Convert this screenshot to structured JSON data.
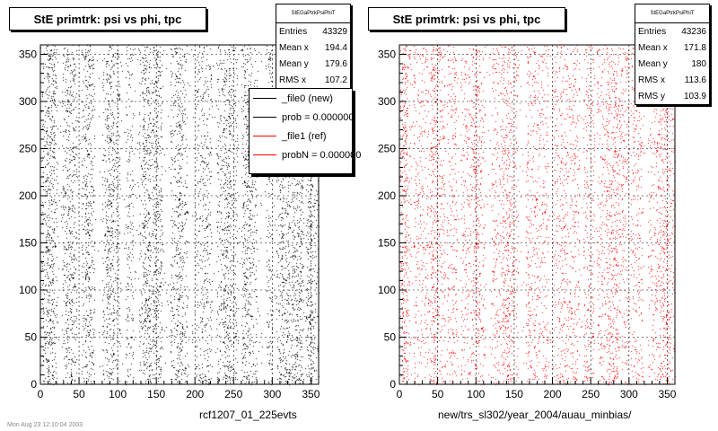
{
  "colors": {
    "left_series": "#000000",
    "right_series": "#ff0000",
    "background": "#ffffff"
  },
  "panels": [
    {
      "title": "StE primtrk: psi vs phi, tpc",
      "caption": "rcf1207_01_225evts",
      "stats": {
        "header": "StEGaPtrkPsiPhiT",
        "rows": [
          {
            "label": "Entries",
            "value": "43329"
          },
          {
            "label": "Mean x",
            "value": "194.4"
          },
          {
            "label": "Mean y",
            "value": "179.6"
          },
          {
            "label": "RMS x",
            "value": "107.2"
          }
        ]
      },
      "legend": [
        {
          "label": "_file0 (new)",
          "color": "#000000"
        },
        {
          "label": "prob = 0.000000",
          "color": "#000000"
        },
        {
          "label": "_file1 (ref)",
          "color": "#ff0000"
        },
        {
          "label": "probN = 0.000000",
          "color": "#ff0000"
        }
      ]
    },
    {
      "title": "StE primtrk: psi vs phi, tpc",
      "caption": "new/trs_sl302/year_2004/auau_minbias/",
      "stats": {
        "header": "StEGaPtrkPsiPhiT",
        "rows": [
          {
            "label": "Entries",
            "value": "43236"
          },
          {
            "label": "Mean x",
            "value": "171.8"
          },
          {
            "label": "Mean y",
            "value": "180"
          },
          {
            "label": "RMS x",
            "value": "113.6"
          },
          {
            "label": "RMS y",
            "value": "103.9"
          }
        ]
      }
    }
  ],
  "footer_stamp": "Mon Aug 23 12:10:04 2003",
  "chart_data": [
    {
      "type": "scatter",
      "title": "StE primtrk: psi vs phi, tpc",
      "xlabel": "rcf1207_01_225evts",
      "ylabel": "",
      "xlim": [
        0,
        360
      ],
      "ylim": [
        0,
        360
      ],
      "xticks": [
        0,
        50,
        100,
        150,
        200,
        250,
        300,
        350
      ],
      "yticks": [
        0,
        50,
        100,
        150,
        200,
        250,
        300,
        350
      ],
      "series": [
        {
          "name": "_file0 (new)",
          "color": "#000000",
          "entries": 43329,
          "dense_phi_bands": [
            [
              8,
              18
            ],
            [
              32,
              42
            ],
            [
              58,
              66
            ],
            [
              85,
              95
            ],
            [
              132,
              142
            ],
            [
              146,
              156
            ],
            [
              176,
              184
            ],
            [
              236,
              246
            ],
            [
              262,
              272
            ],
            [
              310,
              322
            ],
            [
              325,
              338
            ],
            [
              345,
              352
            ]
          ],
          "gap_phi_bands": [
            [
              0,
              2
            ],
            [
              22,
              28
            ],
            [
              47,
              53
            ],
            [
              70,
              80
            ],
            [
              103,
              110
            ],
            [
              120,
              127
            ],
            [
              158,
              168
            ],
            [
              190,
              200
            ],
            [
              222,
              228
            ],
            [
              255,
              260
            ],
            [
              280,
              292
            ],
            [
              300,
              305
            ],
            [
              340,
              343
            ]
          ]
        }
      ]
    },
    {
      "type": "scatter",
      "title": "StE primtrk: psi vs phi, tpc",
      "xlabel": "new/trs_sl302/year_2004/auau_minbias/",
      "ylabel": "",
      "xlim": [
        0,
        360
      ],
      "ylim": [
        0,
        360
      ],
      "xticks": [
        0,
        50,
        100,
        150,
        200,
        250,
        300,
        350
      ],
      "yticks": [
        0,
        50,
        100,
        150,
        200,
        250,
        300,
        350
      ],
      "series": [
        {
          "name": "_file1 (ref)",
          "color": "#ff0000",
          "entries": 43236,
          "dense_phi_bands": [
            [
              3,
              10
            ],
            [
              40,
              50
            ],
            [
              95,
              105
            ],
            [
              135,
              145
            ],
            [
              270,
              285
            ],
            [
              340,
              352
            ]
          ],
          "gap_phi_bands": [
            [
              15,
              18
            ],
            [
              60,
              62
            ],
            [
              75,
              80
            ],
            [
              112,
              120
            ],
            [
              155,
              165
            ],
            [
              195,
              200
            ],
            [
              235,
              240
            ],
            [
              255,
              258
            ],
            [
              300,
              302
            ],
            [
              318,
              325
            ]
          ]
        }
      ]
    }
  ]
}
